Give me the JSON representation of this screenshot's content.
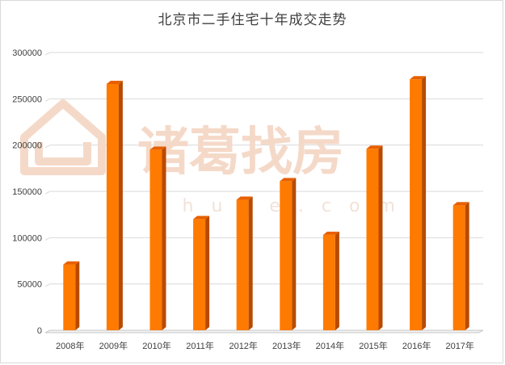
{
  "watermark": {
    "logo_text": "诸葛找房",
    "site_text": "zhuge.com"
  },
  "chart_data": {
    "type": "bar",
    "title": "北京市二手住宅十年成交走势",
    "categories": [
      "2008年",
      "2009年",
      "2010年",
      "2011年",
      "2012年",
      "2013年",
      "2014年",
      "2015年",
      "2016年",
      "2017年"
    ],
    "values": [
      71000,
      266000,
      195000,
      120000,
      141000,
      161000,
      103000,
      196000,
      271000,
      135000
    ],
    "yticks": [
      "0",
      "50000",
      "100000",
      "150000",
      "200000",
      "250000",
      "300000"
    ],
    "ylim": [
      0,
      300000
    ],
    "grid": true,
    "colors": {
      "front": "#ff7a00",
      "side": "#b84a00",
      "top": "#e85f00",
      "grid": "#d9d9d9",
      "floor": "#c8c8c8"
    }
  }
}
